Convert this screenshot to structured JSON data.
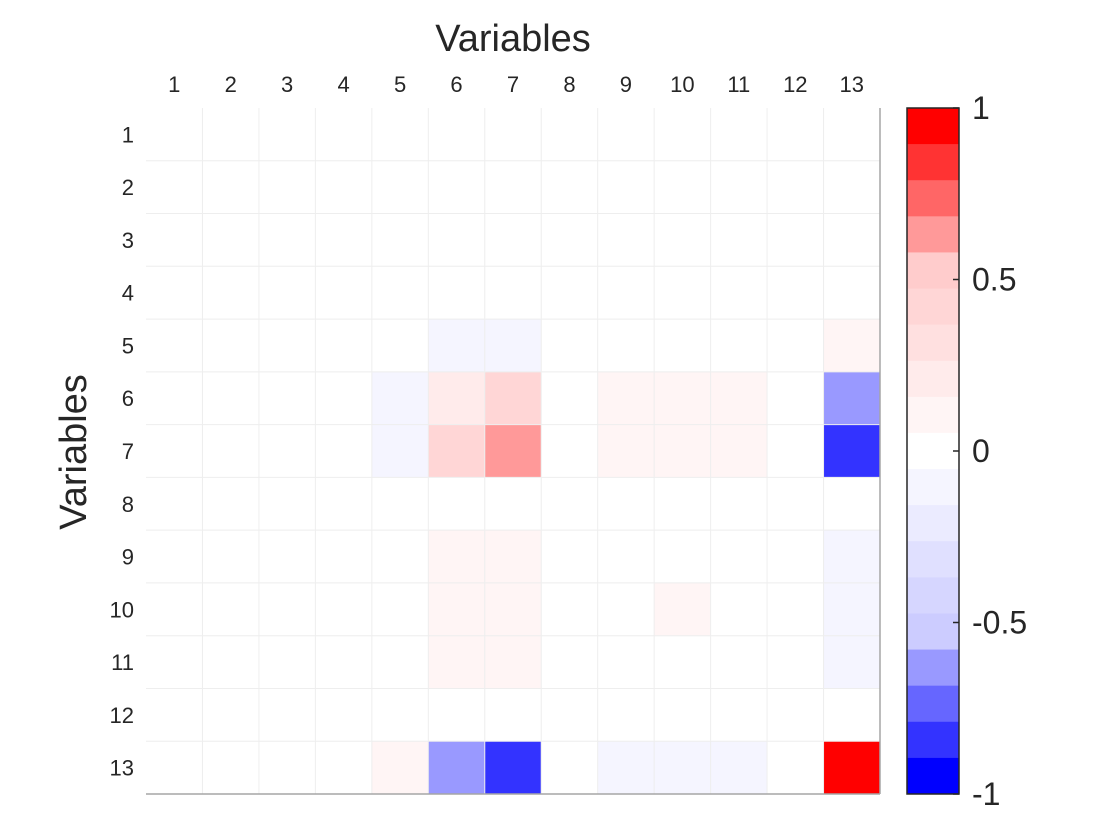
{
  "chart_data": {
    "type": "heatmap",
    "xlabel": "Variables",
    "ylabel": "Variables",
    "x_categories": [
      "1",
      "2",
      "3",
      "4",
      "5",
      "6",
      "7",
      "8",
      "9",
      "10",
      "11",
      "12",
      "13"
    ],
    "y_categories": [
      "1",
      "2",
      "3",
      "4",
      "5",
      "6",
      "7",
      "8",
      "9",
      "10",
      "11",
      "12",
      "13"
    ],
    "x_axis_position": "top",
    "values": [
      [
        0,
        0,
        0,
        0,
        0,
        0,
        0,
        0,
        0,
        0,
        0,
        0,
        0
      ],
      [
        0,
        0,
        0,
        0,
        0,
        0,
        0,
        0,
        0,
        0,
        0,
        0,
        0
      ],
      [
        0,
        0,
        0,
        0,
        0,
        0,
        0,
        0,
        0,
        0,
        0,
        0,
        0
      ],
      [
        0,
        0,
        0,
        0,
        0,
        0,
        0,
        0,
        0,
        0,
        0,
        0,
        0
      ],
      [
        0,
        0,
        0,
        0,
        0,
        -0.06,
        -0.06,
        0,
        0,
        0,
        0,
        0,
        0.06
      ],
      [
        0,
        0,
        0,
        0,
        -0.06,
        0.22,
        0.42,
        0,
        0.06,
        0.1,
        0.06,
        0,
        -0.62
      ],
      [
        0,
        0,
        0,
        0,
        -0.06,
        0.42,
        0.62,
        0,
        0.06,
        0.1,
        0.06,
        0,
        -0.82
      ],
      [
        0,
        0,
        0,
        0,
        0,
        0,
        0,
        0,
        0,
        0,
        0,
        0,
        0
      ],
      [
        0,
        0,
        0,
        0,
        0,
        0.06,
        0.06,
        0,
        0,
        0,
        0,
        0,
        -0.06
      ],
      [
        0,
        0,
        0,
        0,
        0,
        0.1,
        0.1,
        0,
        0,
        0.06,
        0,
        0,
        -0.15
      ],
      [
        0,
        0,
        0,
        0,
        0,
        0.06,
        0.06,
        0,
        0,
        0,
        0,
        0,
        -0.06
      ],
      [
        0,
        0,
        0,
        0,
        0,
        0,
        0,
        0,
        0,
        0,
        0,
        0,
        0
      ],
      [
        0,
        0,
        0,
        0,
        0.06,
        -0.62,
        -0.82,
        0,
        -0.06,
        -0.15,
        -0.06,
        0,
        1
      ]
    ],
    "colorbar": {
      "min": -1,
      "max": 1,
      "ticks": [
        1,
        0.5,
        0,
        -0.5,
        -1
      ],
      "tick_labels": [
        "1",
        "0.5",
        "0",
        "-0.5",
        "-1"
      ],
      "colors_top_to_bottom": [
        "#ff0000",
        "#ff3333",
        "#ff6666",
        "#ff9999",
        "#ffcccc",
        "#ffd6d6",
        "#ffe0e0",
        "#ffebeb",
        "#fff5f5",
        "#ffffff",
        "#f5f5ff",
        "#ebebff",
        "#e0e0ff",
        "#d6d6ff",
        "#ccccff",
        "#9999ff",
        "#6666ff",
        "#3333ff",
        "#0000ff"
      ]
    },
    "grid": true,
    "colormap": "blue-white-red diverging"
  }
}
